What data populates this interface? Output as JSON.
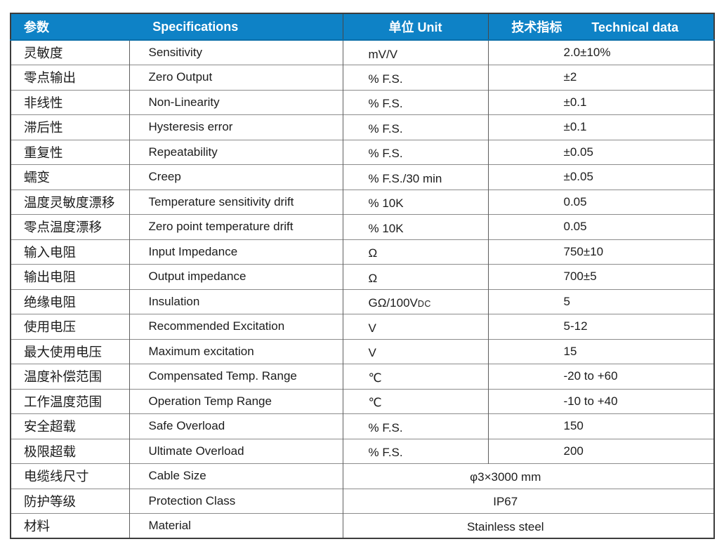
{
  "table": {
    "colors": {
      "header_bg": "#0e82c6",
      "header_text": "#ffffff"
    },
    "header": {
      "param_cn": "参数",
      "spec_en": "Specifications",
      "unit": "单位 Unit",
      "tech_cn": "技术指标",
      "tech_en": "Technical data"
    },
    "rows": [
      {
        "param_cn": "灵敏度",
        "spec_en": "Sensitivity",
        "unit": "mV/V",
        "value": "2.0±10%"
      },
      {
        "param_cn": "零点输出",
        "spec_en": "Zero Output",
        "unit": "% F.S.",
        "value": "±2"
      },
      {
        "param_cn": "非线性",
        "spec_en": "Non-Linearity",
        "unit": "% F.S.",
        "value": "±0.1"
      },
      {
        "param_cn": "滞后性",
        "spec_en": "Hysteresis error",
        "unit": "% F.S.",
        "value": "±0.1"
      },
      {
        "param_cn": "重复性",
        "spec_en": "Repeatability",
        "unit": "% F.S.",
        "value": "±0.05"
      },
      {
        "param_cn": "蠕变",
        "spec_en": "Creep",
        "unit": "% F.S./30 min",
        "value": "±0.05"
      },
      {
        "param_cn": "温度灵敏度漂移",
        "spec_en": "Temperature sensitivity drift",
        "unit": "% 10K",
        "value": "0.05"
      },
      {
        "param_cn": "零点温度漂移",
        "spec_en": "Zero point temperature drift",
        "unit": "% 10K",
        "value": "0.05"
      },
      {
        "param_cn": "输入电阻",
        "spec_en": "Input Impedance",
        "unit": "Ω",
        "value": "750±10"
      },
      {
        "param_cn": "输出电阻",
        "spec_en": "Output impedance",
        "unit": "Ω",
        "value": "700±5"
      },
      {
        "param_cn": "绝缘电阻",
        "spec_en": "Insulation",
        "unit": "GΩ/100V",
        "unit_suffix": "DC",
        "value": "5"
      },
      {
        "param_cn": "使用电压",
        "spec_en": "Recommended Excitation",
        "unit": "V",
        "value": "5-12"
      },
      {
        "param_cn": "最大使用电压",
        "spec_en": "Maximum excitation",
        "unit": "V",
        "value": "15"
      },
      {
        "param_cn": "温度补偿范围",
        "spec_en": "Compensated Temp. Range",
        "unit": "℃",
        "value": "-20 to +60"
      },
      {
        "param_cn": "工作温度范围",
        "spec_en": "Operation Temp Range",
        "unit": "℃",
        "value": "-10 to +40"
      },
      {
        "param_cn": "安全超载",
        "spec_en": "Safe Overload",
        "unit": "% F.S.",
        "value": "150"
      },
      {
        "param_cn": "极限超载",
        "spec_en": "Ultimate Overload",
        "unit": "% F.S.",
        "value": "200"
      },
      {
        "param_cn": "电缆线尺寸",
        "spec_en": "Cable Size",
        "merged_value": "φ3×3000 mm"
      },
      {
        "param_cn": "防护等级",
        "spec_en": "Protection Class",
        "merged_value": "IP67"
      },
      {
        "param_cn": "材料",
        "spec_en": "Material",
        "merged_value": "Stainless steel"
      }
    ]
  }
}
